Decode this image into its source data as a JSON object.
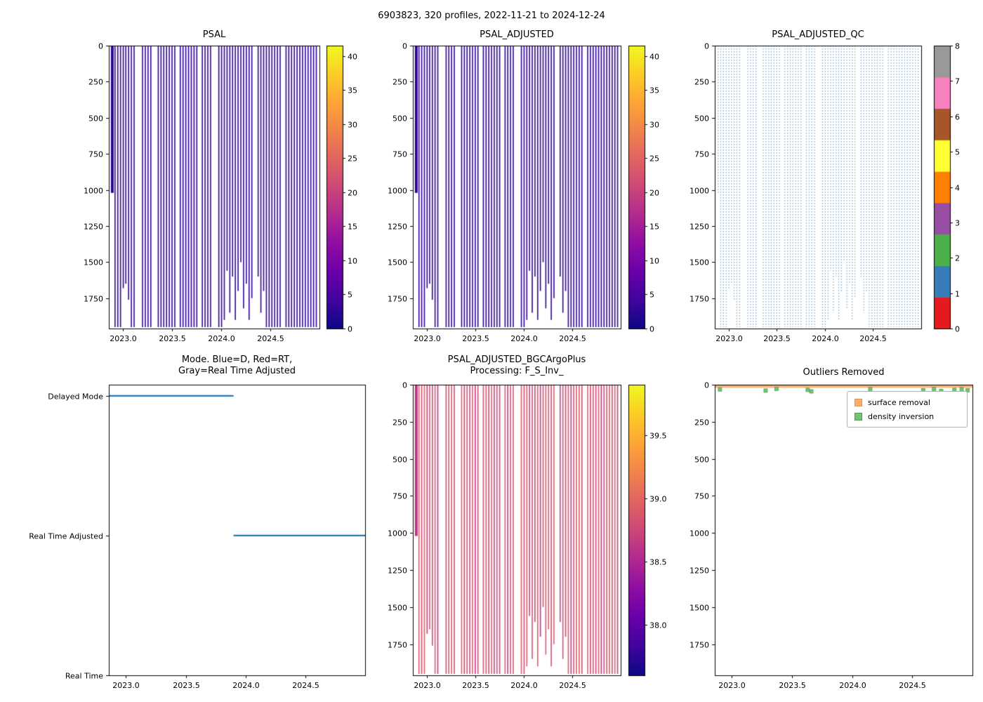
{
  "figure": {
    "title": "6903823, 320 profiles, 2022-11-21 to 2024-12-24"
  },
  "colors": {
    "background": "#ffffff",
    "axis": "#000000",
    "qc_line": "#377eb8",
    "mode_line": "#1f77b4",
    "surface_removal": "#fdae6b",
    "surface_removal_edge": "#e89148",
    "density_inversion": "#74c476",
    "density_inversion_edge": "#4f9d55"
  },
  "colormaps": {
    "plasma": [
      [
        0.0,
        "#0d0887"
      ],
      [
        0.1,
        "#41049d"
      ],
      [
        0.2,
        "#6a00a8"
      ],
      [
        0.3,
        "#8f0da4"
      ],
      [
        0.4,
        "#b12a90"
      ],
      [
        0.5,
        "#cc4778"
      ],
      [
        0.6,
        "#e16462"
      ],
      [
        0.7,
        "#f2844b"
      ],
      [
        0.8,
        "#fca636"
      ],
      [
        0.9,
        "#fcce25"
      ],
      [
        1.0,
        "#f0f921"
      ]
    ],
    "set1": [
      "#e41a1c",
      "#377eb8",
      "#4daf4a",
      "#984ea3",
      "#ff7f00",
      "#ffff33",
      "#a65628",
      "#f781bf",
      "#999999"
    ]
  },
  "profiles": [
    [
      2022.892,
      1020,
      38.9,
      4
    ],
    [
      2022.92,
      1950,
      38.6
    ],
    [
      2022.948,
      1950,
      38.72
    ],
    [
      2022.976,
      1950,
      38.55
    ],
    [
      2023.004,
      1680,
      38.8
    ],
    [
      2023.03,
      1650,
      38.65
    ],
    [
      2023.058,
      1760,
      38.75
    ],
    [
      2023.086,
      1950,
      38.58
    ],
    [
      2023.114,
      1950,
      38.85
    ],
    [
      2023.2,
      1950,
      38.68
    ],
    [
      2023.228,
      1950,
      38.62
    ],
    [
      2023.256,
      1950,
      38.6
    ],
    [
      2023.284,
      1950,
      38.72
    ],
    [
      2023.36,
      1950,
      38.55
    ],
    [
      2023.388,
      1950,
      38.8
    ],
    [
      2023.416,
      1950,
      38.65
    ],
    [
      2023.444,
      1950,
      38.75
    ],
    [
      2023.472,
      1950,
      38.58
    ],
    [
      2023.5,
      1950,
      38.85
    ],
    [
      2023.528,
      1950,
      38.68
    ],
    [
      2023.584,
      1950,
      38.62
    ],
    [
      2023.612,
      1950,
      38.6
    ],
    [
      2023.64,
      1950,
      38.72
    ],
    [
      2023.668,
      1950,
      38.55
    ],
    [
      2023.696,
      1950,
      38.8
    ],
    [
      2023.724,
      1950,
      38.65
    ],
    [
      2023.752,
      1950,
      38.75
    ],
    [
      2023.808,
      1950,
      38.58
    ],
    [
      2023.836,
      1950,
      38.85
    ],
    [
      2023.864,
      1950,
      38.68
    ],
    [
      2023.892,
      1950,
      38.62
    ],
    [
      2023.976,
      1950,
      38.6
    ],
    [
      2024.004,
      1950,
      38.72
    ],
    [
      2024.032,
      1900,
      38.55
    ],
    [
      2024.06,
      1560,
      38.8
    ],
    [
      2024.088,
      1850,
      38.65
    ],
    [
      2024.116,
      1600,
      38.75
    ],
    [
      2024.144,
      1900,
      38.58
    ],
    [
      2024.172,
      1700,
      38.85
    ],
    [
      2024.2,
      1500,
      38.68
    ],
    [
      2024.228,
      1820,
      38.62
    ],
    [
      2024.256,
      1650,
      38.6
    ],
    [
      2024.284,
      1900,
      38.72
    ],
    [
      2024.312,
      1750,
      38.55
    ],
    [
      2024.376,
      1600,
      38.8
    ],
    [
      2024.404,
      1850,
      38.65
    ],
    [
      2024.432,
      1700,
      38.75
    ],
    [
      2024.46,
      1950,
      38.58
    ],
    [
      2024.488,
      1950,
      38.85
    ],
    [
      2024.516,
      1950,
      38.68
    ],
    [
      2024.544,
      1950,
      38.62
    ],
    [
      2024.572,
      1950,
      38.6
    ],
    [
      2024.6,
      1950,
      38.72
    ],
    [
      2024.66,
      1950,
      38.55
    ],
    [
      2024.688,
      1950,
      38.8
    ],
    [
      2024.716,
      1950,
      38.65
    ],
    [
      2024.744,
      1950,
      38.75
    ],
    [
      2024.772,
      1950,
      38.58
    ],
    [
      2024.8,
      1950,
      38.85
    ],
    [
      2024.828,
      1950,
      38.68
    ],
    [
      2024.856,
      1950,
      38.62
    ],
    [
      2024.884,
      1950,
      38.6
    ],
    [
      2024.912,
      1950,
      38.72
    ],
    [
      2024.94,
      1950,
      38.55
    ],
    [
      2024.968,
      1950,
      38.8
    ]
  ],
  "chart_data": [
    {
      "id": "psal",
      "type": "heatmap",
      "render": "stripes",
      "title": "PSAL",
      "xlim": [
        2022.857,
        2025.0
      ],
      "ylim": [
        0,
        1960
      ],
      "xticks": [
        "2023.0",
        "2023.5",
        "2024.0",
        "2024.5"
      ],
      "yticks": [
        0,
        250,
        500,
        750,
        1000,
        1250,
        1500,
        1750
      ],
      "colorbar": {
        "cmap": "plasma_r",
        "vmin": 0,
        "vmax": 41.5,
        "ticks": [
          "0",
          "5",
          "10",
          "15",
          "20",
          "25",
          "30",
          "35",
          "40"
        ]
      }
    },
    {
      "id": "psal_adjusted",
      "type": "heatmap",
      "render": "stripes",
      "title": "PSAL_ADJUSTED",
      "xlim": [
        2022.857,
        2025.0
      ],
      "ylim": [
        0,
        1960
      ],
      "xticks": [
        "2023.0",
        "2023.5",
        "2024.0",
        "2024.5"
      ],
      "yticks": [
        0,
        250,
        500,
        750,
        1000,
        1250,
        1500,
        1750
      ],
      "colorbar": {
        "cmap": "plasma_r",
        "vmin": 0,
        "vmax": 41.5,
        "ticks": [
          "0",
          "5",
          "10",
          "15",
          "20",
          "25",
          "30",
          "35",
          "40"
        ]
      }
    },
    {
      "id": "psal_adjusted_qc",
      "type": "heatmap",
      "render": "qc",
      "title": "PSAL_ADJUSTED_QC",
      "xlim": [
        2022.857,
        2025.0
      ],
      "ylim": [
        0,
        1960
      ],
      "xticks": [
        "2023.0",
        "2023.5",
        "2024.0",
        "2024.5"
      ],
      "yticks": [
        0,
        250,
        500,
        750,
        1000,
        1250,
        1500,
        1750
      ],
      "qc_value": 1,
      "colorbar": {
        "cmap": "set1",
        "discrete": true,
        "vmin": 0,
        "vmax": 8,
        "ticks": [
          "0",
          "1",
          "2",
          "3",
          "4",
          "5",
          "6",
          "7",
          "8"
        ]
      }
    },
    {
      "id": "mode",
      "type": "line",
      "render": "mode",
      "title_line1": "Mode. Blue=D, Red=RT,",
      "title_line2": "Gray=Real Time Adjusted",
      "xlim": [
        2022.857,
        2025.0
      ],
      "xticks": [
        "2023.0",
        "2023.5",
        "2024.0",
        "2024.5"
      ],
      "categories": [
        "Delayed Mode",
        "Real Time Adjusted",
        "Real Time"
      ],
      "segments": [
        {
          "cat": 0,
          "t0": 2022.857,
          "t1": 2023.9
        },
        {
          "cat": 1,
          "t0": 2023.9,
          "t1": 2025.0
        }
      ]
    },
    {
      "id": "psal_adjusted_bgc",
      "type": "heatmap",
      "render": "stripes",
      "title_line1": "PSAL_ADJUSTED_BGCArgoPlus",
      "title_line2": "Processing: F_S_Inv_",
      "xlim": [
        2022.857,
        2025.0
      ],
      "ylim": [
        0,
        1960
      ],
      "xticks": [
        "2023.0",
        "2023.5",
        "2024.0",
        "2024.5"
      ],
      "yticks": [
        0,
        250,
        500,
        750,
        1000,
        1250,
        1500,
        1750
      ],
      "colorbar": {
        "cmap": "plasma_r",
        "vmin": 37.6,
        "vmax": 39.9,
        "ticks": [
          "38.0",
          "38.5",
          "39.0",
          "39.5"
        ]
      }
    },
    {
      "id": "outliers",
      "type": "scatter",
      "render": "outliers",
      "title": "Outliers Removed",
      "xlim": [
        2022.857,
        2025.0
      ],
      "ylim": [
        0,
        1960
      ],
      "xticks": [
        "2023.0",
        "2023.5",
        "2024.0",
        "2024.5"
      ],
      "yticks": [
        0,
        250,
        500,
        750,
        1000,
        1250,
        1500,
        1750
      ],
      "legend": [
        {
          "label": "surface removal",
          "color": "#fdae6b",
          "edge": "#e89148"
        },
        {
          "label": "density inversion",
          "color": "#74c476",
          "edge": "#4f9d55"
        }
      ],
      "surface_removal_band": {
        "t0": 2022.862,
        "t1": 2024.997,
        "depth": 10,
        "step": 0.0067
      },
      "density_inversion_points": [
        [
          2022.9,
          32
        ],
        [
          2023.28,
          40
        ],
        [
          2023.37,
          28
        ],
        [
          2023.63,
          35
        ],
        [
          2023.66,
          45
        ],
        [
          2024.15,
          30
        ],
        [
          2024.59,
          38
        ],
        [
          2024.68,
          30
        ],
        [
          2024.74,
          42
        ],
        [
          2024.85,
          35
        ],
        [
          2024.91,
          30
        ],
        [
          2024.96,
          38
        ]
      ]
    }
  ]
}
